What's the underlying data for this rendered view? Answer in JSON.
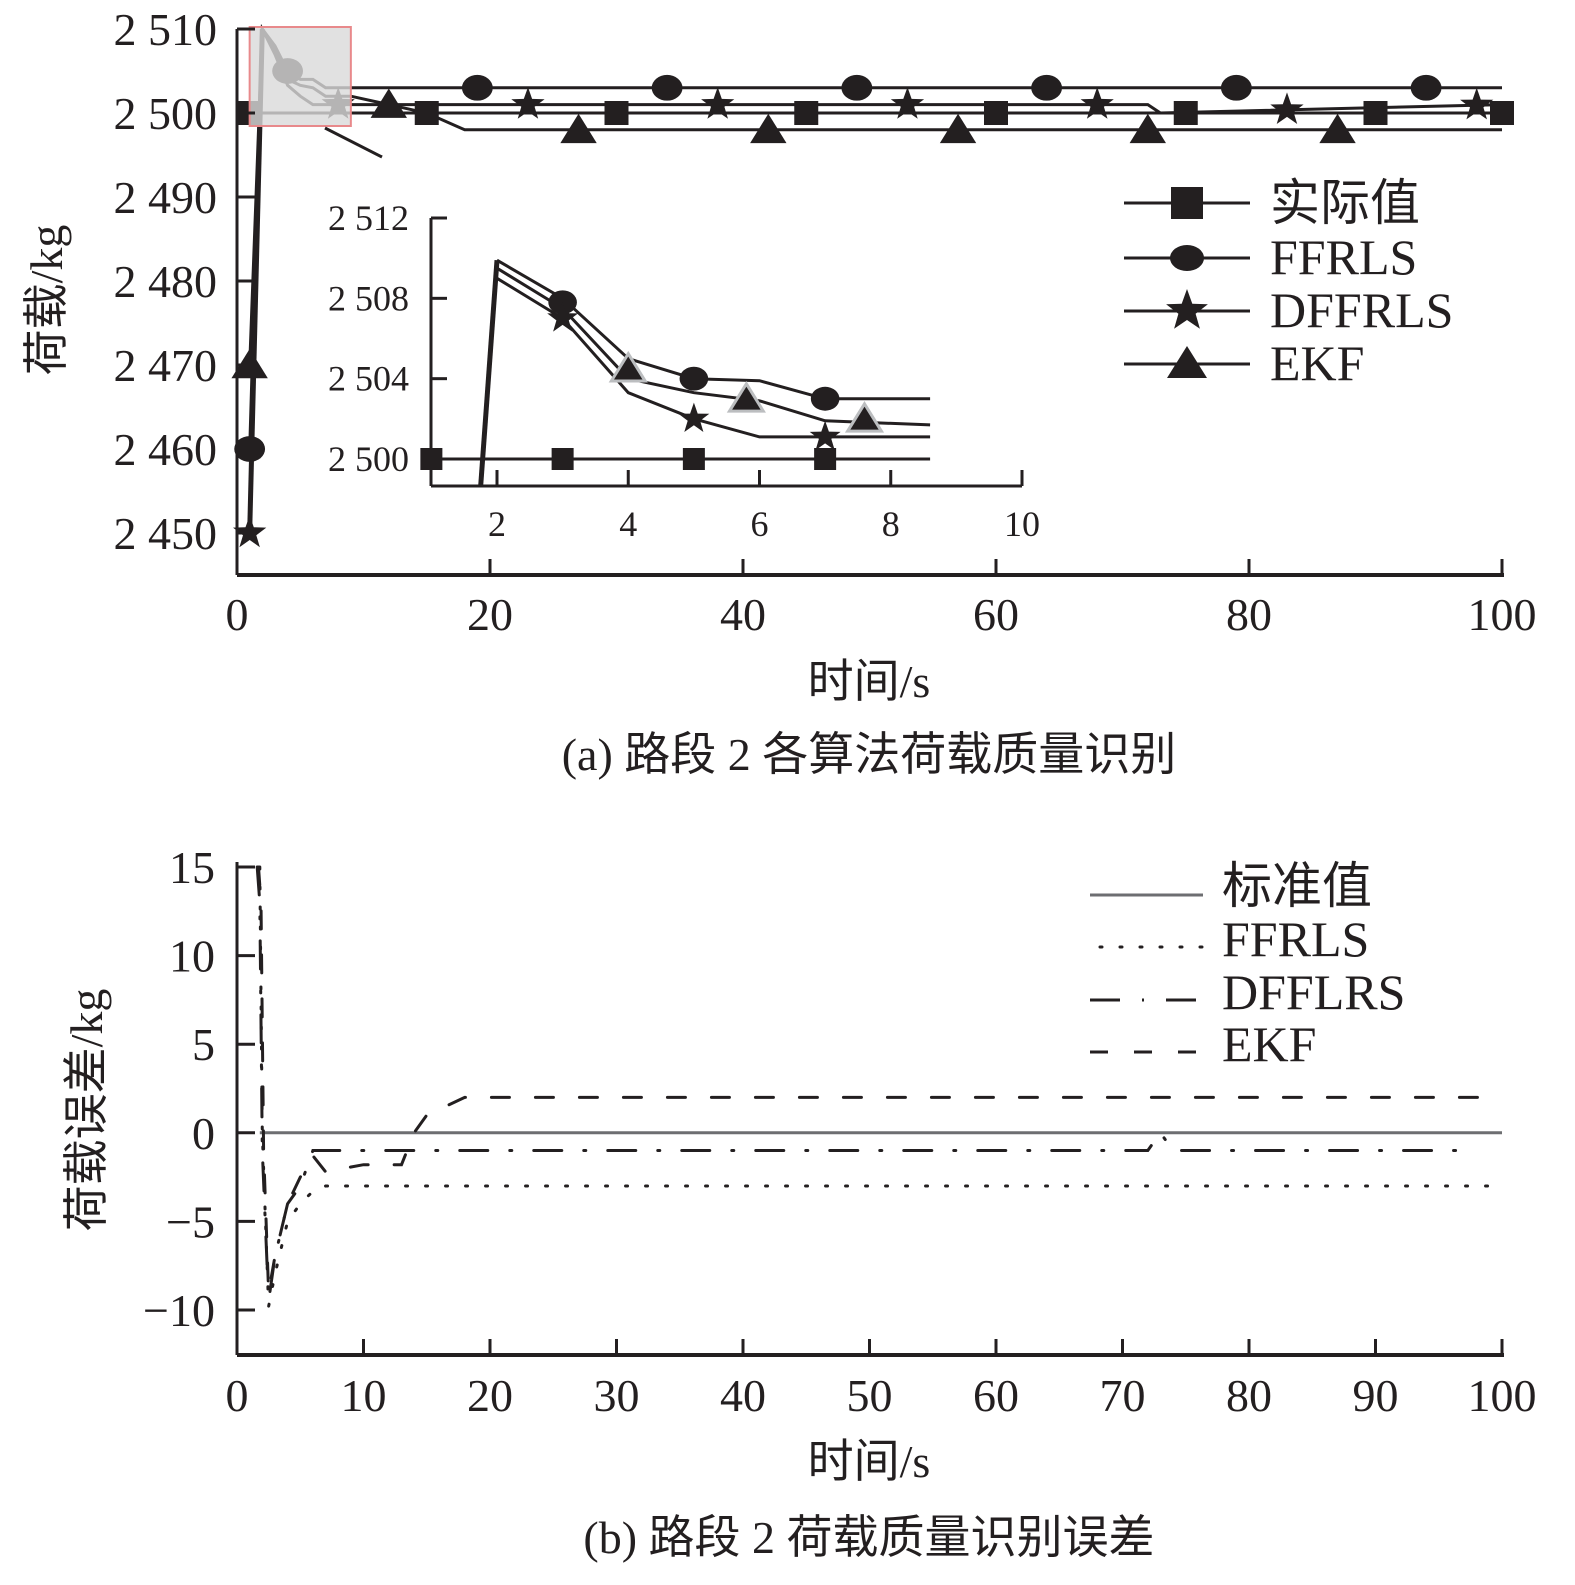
{
  "chart_data": [
    {
      "type": "line",
      "title": "(a) 路段 2 各算法荷载质量识别",
      "xlabel": "时间/s",
      "ylabel": "荷载/kg",
      "xlim": [
        0,
        100
      ],
      "ylim": [
        2445,
        2510
      ],
      "xticks": [
        0,
        20,
        40,
        60,
        80,
        100
      ],
      "xtick_labels": [
        "0",
        "20",
        "40",
        "60",
        "80",
        "100"
      ],
      "yticks": [
        2450,
        2460,
        2470,
        2480,
        2490,
        2500,
        2510
      ],
      "ytick_labels": [
        "2 450",
        "2 460",
        "2 470",
        "2 480",
        "2 490",
        "2 500",
        "2 510"
      ],
      "grid": false,
      "legend_position": "right",
      "series": [
        {
          "name": "实际值",
          "marker": "square",
          "x": [
            0,
            100
          ],
          "y": [
            2500,
            2500
          ],
          "marker_x": [
            1,
            15,
            30,
            45,
            60,
            75,
            90,
            100
          ]
        },
        {
          "name": "FFRLS",
          "marker": "circle",
          "x": [
            1,
            2,
            3,
            4,
            5,
            6,
            7,
            9,
            100
          ],
          "y": [
            2460,
            2510,
            2508,
            2505,
            2504,
            2504,
            2503,
            2503,
            2503
          ],
          "marker_x": [
            1,
            4,
            19,
            34,
            49,
            64,
            79,
            94
          ]
        },
        {
          "name": "DFFRLS",
          "marker": "star",
          "x": [
            1,
            2,
            3,
            4,
            5,
            6,
            7,
            9,
            72,
            73,
            100
          ],
          "y": [
            2450,
            2510,
            2507,
            2503.3,
            2502,
            2501,
            2501,
            2501,
            2501,
            2500,
            2501
          ],
          "marker_x": [
            1,
            8,
            23,
            38,
            53,
            68,
            83,
            98
          ]
        },
        {
          "name": "EKF",
          "marker": "triangle",
          "x": [
            1,
            2,
            3,
            4,
            5,
            6,
            7,
            9,
            15,
            18,
            100
          ],
          "y": [
            2470,
            2510,
            2507.5,
            2504,
            2503.3,
            2503,
            2502,
            2502,
            2500,
            2498,
            2498
          ],
          "marker_x": [
            1,
            12,
            27,
            42,
            57,
            72,
            87
          ]
        }
      ],
      "inset": {
        "xlim": [
          1,
          10
        ],
        "ylim": [
          2498.6,
          2512
        ],
        "xticks": [
          2,
          4,
          6,
          8,
          10
        ],
        "xtick_labels": [
          "2",
          "4",
          "6",
          "8",
          "10"
        ],
        "yticks": [
          2500,
          2504,
          2508,
          2512
        ],
        "ytick_labels": [
          "2 500",
          "2 504",
          "2 508",
          "2 512"
        ],
        "series": [
          {
            "name": "实际值",
            "marker": "square",
            "x": [
              1,
              8.6
            ],
            "y": [
              2500,
              2500
            ],
            "marker_x": [
              1,
              3,
              5,
              7
            ],
            "marker_y": [
              2500,
              2500,
              2500,
              2500
            ]
          },
          {
            "name": "FFRLS",
            "marker": "circle",
            "x": [
              2,
              3,
              4,
              5,
              6,
              7,
              8.6
            ],
            "y": [
              2509.9,
              2508,
              2505,
              2504,
              2503.9,
              2503,
              2503
            ],
            "marker_x": [
              3,
              5,
              7
            ],
            "marker_y": [
              2507.8,
              2504,
              2503
            ]
          },
          {
            "name": "DFFRLS",
            "marker": "star",
            "x": [
              2,
              3,
              4,
              5,
              6,
              7,
              8.6
            ],
            "y": [
              2509,
              2507,
              2503.3,
              2502,
              2501.1,
              2501.1,
              2501.1
            ],
            "marker_x": [
              3,
              5,
              7
            ],
            "marker_y": [
              2507,
              2502,
              2501.1
            ]
          },
          {
            "name": "EKF",
            "marker": "triangle",
            "x": [
              2,
              3,
              4,
              5,
              6,
              7,
              8.6
            ],
            "y": [
              2509.5,
              2507.5,
              2504,
              2503.3,
              2502.9,
              2501.9,
              2501.7
            ],
            "marker_x": [
              4,
              5.8,
              7.6
            ],
            "marker_y": [
              2504.5,
              2503,
              2502
            ]
          },
          {
            "name": "rise",
            "marker": "none",
            "x": [
              1.75,
              2
            ],
            "y": [
              2498.6,
              2509.9
            ]
          }
        ]
      }
    },
    {
      "type": "line",
      "title": "(b) 路段 2 荷载质量识别误差",
      "xlabel": "时间/s",
      "ylabel": "荷载误差/kg",
      "xlim": [
        0,
        100
      ],
      "ylim": [
        -12.5,
        15
      ],
      "xticks": [
        0,
        10,
        20,
        30,
        40,
        50,
        60,
        70,
        80,
        90,
        100
      ],
      "xtick_labels": [
        "0",
        "10",
        "20",
        "30",
        "40",
        "50",
        "60",
        "70",
        "80",
        "90",
        "100"
      ],
      "yticks": [
        -10,
        -5,
        0,
        5,
        10,
        15
      ],
      "ytick_labels": [
        "−10",
        "−5",
        "0",
        "5",
        "10",
        "15"
      ],
      "grid": false,
      "legend_position": "top-right",
      "series": [
        {
          "name": "标准值",
          "style": "solid",
          "color": "#6d6e71",
          "x": [
            1.8,
            100
          ],
          "y": [
            0,
            0
          ]
        },
        {
          "name": "FFRLS",
          "style": "dotted",
          "color": "#231f20",
          "x": [
            1.8,
            2,
            2.5,
            3,
            4,
            5,
            6,
            7,
            100
          ],
          "y": [
            15,
            0,
            -9.8,
            -8,
            -5,
            -4,
            -3.3,
            -3,
            -3
          ]
        },
        {
          "name": "DFFLRS",
          "style": "dashdot",
          "color": "#231f20",
          "x": [
            1.6,
            1.8,
            2,
            2.5,
            3,
            4,
            5,
            6,
            10,
            13,
            14,
            72,
            73,
            74,
            98
          ],
          "y": [
            15,
            13,
            -1,
            -9.5,
            -7,
            -4,
            -3,
            -1,
            -1,
            -1,
            -1,
            -1,
            0,
            -1,
            -1
          ]
        },
        {
          "name": "EKF",
          "style": "dashed",
          "color": "#231f20",
          "x": [
            1.7,
            1.9,
            2.1,
            2.5,
            3,
            4,
            5,
            6,
            7,
            10,
            12,
            13,
            14,
            15,
            18,
            100
          ],
          "y": [
            15,
            13,
            -1,
            -9,
            -7,
            -4,
            -2.5,
            -1.3,
            -2.2,
            -1.8,
            -1.8,
            -1.8,
            0,
            1,
            2,
            2
          ]
        }
      ]
    }
  ],
  "legend_a": [
    "实际值",
    "FFRLS",
    "DFFRLS",
    "EKF"
  ],
  "legend_b": [
    "标准值",
    "FFRLS",
    "DFFLRS",
    "EKF"
  ],
  "colors": {
    "ink": "#231f20",
    "zero_line": "#6d6e71",
    "highlight_fill": "#d9d9d9",
    "highlight_stroke": "#e8898b",
    "inset_marker_outline": "#bcbec0"
  }
}
